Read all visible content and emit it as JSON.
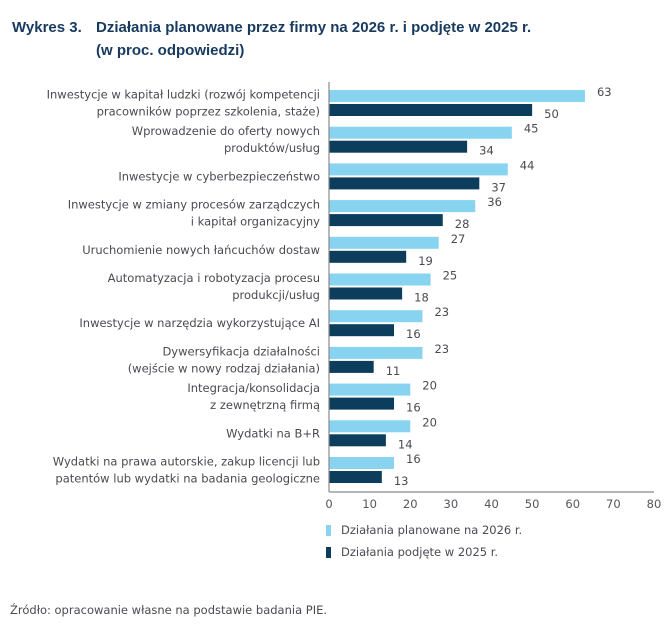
{
  "title": {
    "number": "Wykres 3.",
    "main": "Działania planowane przez firmy na 2026 r. i podjęte w 2025 r.",
    "sub": "(w proc. odpowiedzi)"
  },
  "source": "Źródło: opracowanie własne na podstawie badania PIE.",
  "colors": {
    "planned": "#87d3f0",
    "taken": "#0d3d5c",
    "axis": "#8a8a8a"
  },
  "chart_data": {
    "type": "bar",
    "orientation": "horizontal",
    "title": "Działania planowane przez firmy na 2026 r. i podjęte w 2025 r. (w proc. odpowiedzi)",
    "xlabel": "",
    "ylabel": "",
    "xlim": [
      0,
      80
    ],
    "xticks": [
      "0",
      "10",
      "20",
      "30",
      "40",
      "50",
      "60",
      "70",
      "80"
    ],
    "grid": false,
    "legend_position": "bottom",
    "categories": [
      [
        "Inwestycje w kapitał ludzki (rozwój kompetencji",
        "pracowników poprzez szkolenia, staże)"
      ],
      [
        "Wprowadzenie do oferty nowych",
        "produktów/usług"
      ],
      [
        "Inwestycje w cyberbezpieczeństwo"
      ],
      [
        "Inwestycje w zmiany procesów zarządczych",
        "i kapitał organizacyjny"
      ],
      [
        "Uruchomienie nowych łańcuchów dostaw"
      ],
      [
        "Automatyzacja i robotyzacja procesu",
        "produkcji/usług"
      ],
      [
        "Inwestycje w narzędzia wykorzystujące AI"
      ],
      [
        "Dywersyfikacja działalności",
        "(wejście w nowy rodzaj działania)"
      ],
      [
        "Integracja/konsolidacja",
        "z zewnętrzną firmą"
      ],
      [
        "Wydatki na B+R"
      ],
      [
        "Wydatki na prawa autorskie, zakup licencji lub",
        "patentów lub wydatki na badania geologiczne"
      ]
    ],
    "series": [
      {
        "name": "Działania planowane na 2026 r.",
        "values": [
          63,
          45,
          44,
          36,
          27,
          25,
          23,
          23,
          20,
          20,
          16
        ]
      },
      {
        "name": "Działania podjęte w 2025 r.",
        "values": [
          50,
          34,
          37,
          28,
          19,
          18,
          16,
          11,
          16,
          14,
          13
        ]
      }
    ]
  }
}
